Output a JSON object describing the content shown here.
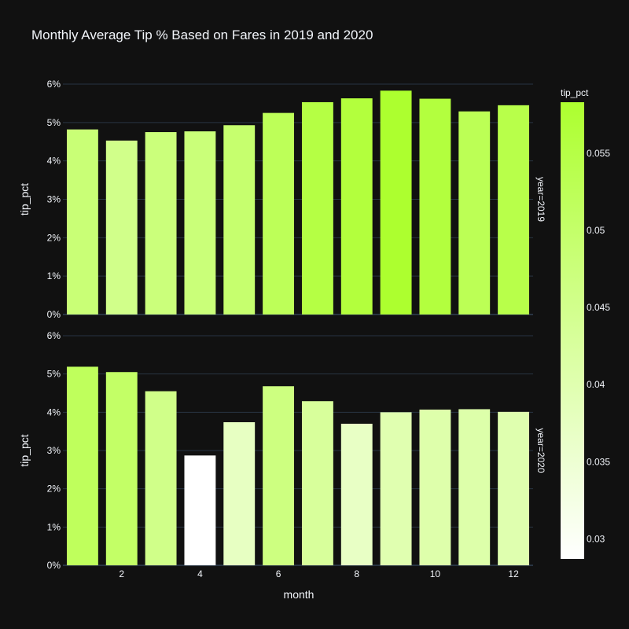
{
  "colors": {
    "background": "#111111",
    "grid": "#283442",
    "text": "#f2f5fa",
    "colorscale_low": "#ffffff",
    "colorscale_high": "#adff2f"
  },
  "chart_data": {
    "type": "bar",
    "title": "Monthly Average Tip % Based on Fares in 2019 and 2020",
    "xlabel": "month",
    "ylabel": "tip_pct",
    "x_tick_labels": [
      "2",
      "4",
      "6",
      "8",
      "10",
      "12"
    ],
    "x_tick_values": [
      2,
      4,
      6,
      8,
      10,
      12
    ],
    "y_tick_labels": [
      "0%",
      "1%",
      "2%",
      "3%",
      "4%",
      "5%",
      "6%"
    ],
    "y_tick_values": [
      0,
      0.01,
      0.02,
      0.03,
      0.04,
      0.05,
      0.06
    ],
    "ylim": [
      0,
      0.06
    ],
    "grid": true,
    "legend": "none",
    "facets": [
      {
        "label": "year=2019",
        "x": [
          1,
          2,
          3,
          4,
          5,
          6,
          7,
          8,
          9,
          10,
          11,
          12
        ],
        "values": [
          0.0482,
          0.0453,
          0.0475,
          0.0477,
          0.0493,
          0.0525,
          0.0553,
          0.0563,
          0.0583,
          0.0562,
          0.0529,
          0.0545
        ]
      },
      {
        "label": "year=2020",
        "x": [
          1,
          2,
          3,
          4,
          5,
          6,
          7,
          8,
          9,
          10,
          11,
          12
        ],
        "values": [
          0.0519,
          0.0505,
          0.0455,
          0.0287,
          0.0374,
          0.0468,
          0.0429,
          0.037,
          0.04,
          0.0407,
          0.0408,
          0.0401
        ]
      }
    ],
    "colorbar": {
      "title": "tip_pct",
      "tick_labels": [
        "0.03",
        "0.035",
        "0.04",
        "0.045",
        "0.05",
        "0.055"
      ],
      "tick_values": [
        0.03,
        0.035,
        0.04,
        0.045,
        0.05,
        0.055
      ],
      "range": [
        0.0287,
        0.0583
      ]
    }
  }
}
